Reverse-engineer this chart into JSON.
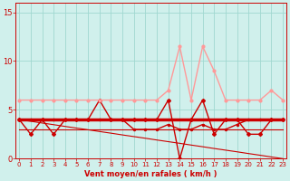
{
  "x": [
    0,
    1,
    2,
    3,
    4,
    5,
    6,
    7,
    8,
    9,
    10,
    11,
    12,
    13,
    14,
    15,
    16,
    17,
    18,
    19,
    20,
    21,
    22,
    23
  ],
  "rafales": [
    6,
    6,
    6,
    6,
    6,
    6,
    6,
    6,
    6,
    6,
    6,
    6,
    6,
    7,
    11.5,
    6,
    11.5,
    9,
    6,
    6,
    6,
    6,
    7,
    6
  ],
  "zigzag": [
    4,
    2.5,
    4,
    2.5,
    4,
    4,
    4,
    6,
    4,
    4,
    4,
    4,
    4,
    6,
    0,
    4,
    6,
    2.5,
    4,
    4,
    2.5,
    2.5,
    4,
    4
  ],
  "flat_thick": [
    4,
    4,
    4,
    4,
    4,
    4,
    4,
    4,
    4,
    4,
    4,
    4,
    4,
    4,
    4,
    4,
    4,
    4,
    4,
    4,
    4,
    4,
    4,
    4
  ],
  "trend": [
    4,
    3.83,
    3.65,
    3.48,
    3.3,
    3.13,
    2.96,
    2.78,
    2.61,
    2.43,
    2.26,
    2.09,
    1.91,
    1.74,
    1.57,
    1.39,
    1.22,
    1.04,
    0.87,
    0.7,
    0.52,
    0.35,
    0.17,
    0.0
  ],
  "mean_line": [
    4,
    4,
    4,
    4,
    4,
    4,
    4,
    4,
    4,
    4,
    3,
    3,
    3,
    3.5,
    3,
    3,
    3.5,
    3,
    3,
    3.5,
    4,
    4,
    4,
    4
  ],
  "median_line": [
    3,
    3,
    3,
    3,
    3,
    3,
    3,
    3,
    3,
    3,
    3,
    3,
    3,
    3,
    3,
    3,
    3,
    3,
    3,
    3,
    3,
    3,
    3,
    3
  ],
  "bg_color": "#d0f0ec",
  "grid_color": "#a0d8d0",
  "dark_red": "#cc0000",
  "light_pink": "#ff9999",
  "medium_red": "#dd4444",
  "xlabel": "Vent moyen/en rafales ( km/h )",
  "yticks": [
    0,
    5,
    10,
    15
  ],
  "xlim": [
    0,
    23
  ],
  "ylim": [
    0,
    16
  ]
}
